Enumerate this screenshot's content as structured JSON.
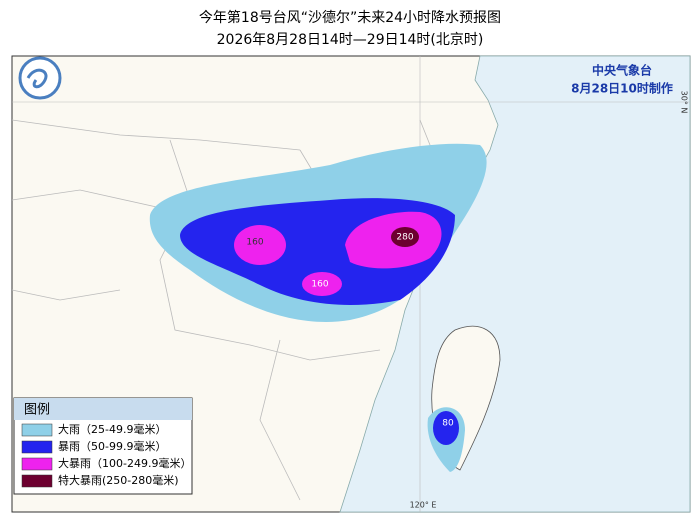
{
  "header": {
    "title": "今年第18号台风“沙德尔”未来24小时降水预报图",
    "subtitle": "2026年8月28日14时—29日14时(北京时)"
  },
  "issuer": {
    "agency": "中央气象台",
    "issued": "8月28日10时制作"
  },
  "grid_labels": {
    "latitude": "30° N",
    "longitude": "120° E"
  },
  "map_labels": [
    "160",
    "160",
    "280",
    "80"
  ],
  "legend": {
    "title": "图例",
    "items": [
      "大雨（25-49.9毫米）",
      "暴雨（50-99.9毫米）",
      "大暴雨（100-249.9毫米）",
      "特大暴雨(250-280毫米)"
    ]
  }
}
